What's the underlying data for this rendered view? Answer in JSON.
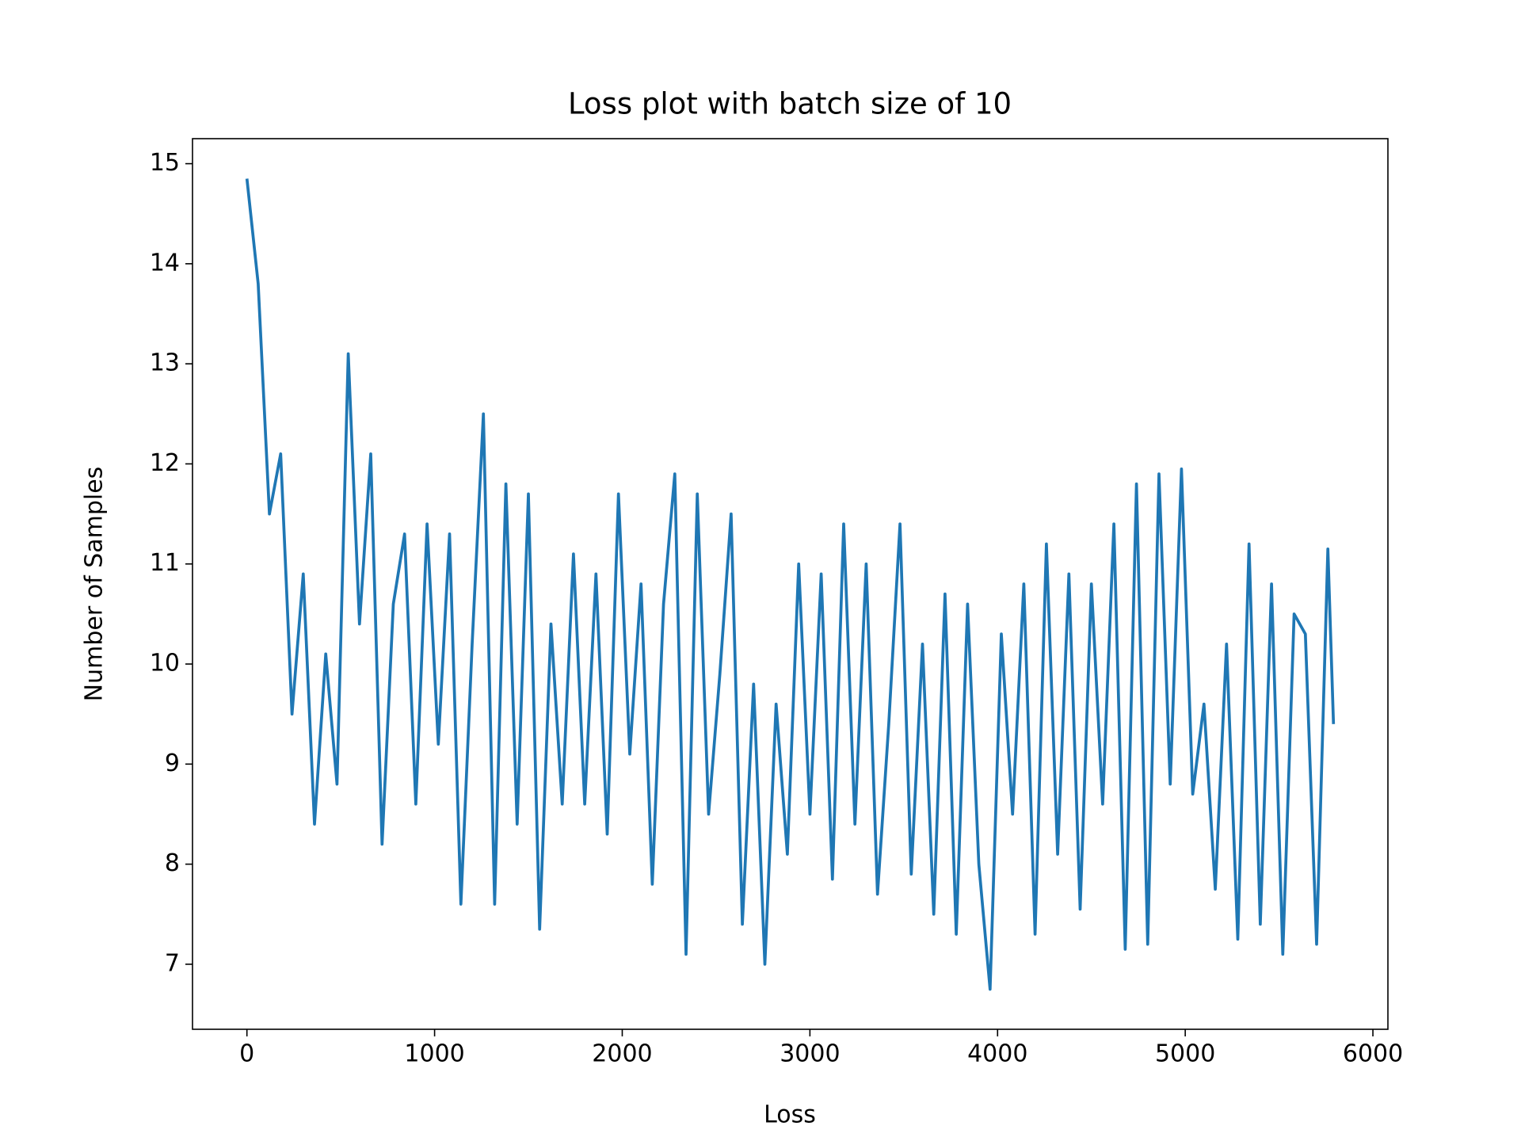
{
  "chart_data": {
    "type": "line",
    "title": "Loss plot with batch size of 10",
    "x_label": "Loss",
    "y_label": "Number of Samples",
    "x": [
      0,
      60,
      120,
      180,
      240,
      300,
      360,
      420,
      480,
      540,
      600,
      660,
      720,
      780,
      840,
      900,
      960,
      1020,
      1080,
      1140,
      1200,
      1260,
      1320,
      1380,
      1440,
      1500,
      1560,
      1620,
      1680,
      1740,
      1800,
      1860,
      1920,
      1980,
      2040,
      2100,
      2160,
      2220,
      2280,
      2340,
      2400,
      2460,
      2520,
      2580,
      2640,
      2700,
      2760,
      2820,
      2880,
      2940,
      3000,
      3060,
      3120,
      3180,
      3240,
      3300,
      3360,
      3420,
      3480,
      3540,
      3600,
      3660,
      3720,
      3780,
      3840,
      3900,
      3960,
      4020,
      4080,
      4140,
      4200,
      4260,
      4320,
      4380,
      4440,
      4500,
      4560,
      4620,
      4680,
      4740,
      4800,
      4860,
      4920,
      4980,
      5040,
      5100,
      5160,
      5220,
      5280,
      5340,
      5400,
      5460,
      5520,
      5580,
      5640,
      5700,
      5760,
      5790
    ],
    "series": [
      {
        "color": "#1f77b4",
        "values": [
          14.85,
          13.8,
          11.5,
          12.1,
          9.5,
          10.9,
          8.4,
          10.1,
          8.8,
          13.1,
          10.4,
          12.1,
          8.2,
          10.6,
          11.3,
          8.6,
          11.4,
          9.2,
          11.3,
          7.6,
          10.2,
          12.5,
          7.6,
          11.8,
          8.4,
          11.7,
          7.35,
          10.4,
          8.6,
          11.1,
          8.6,
          10.9,
          8.3,
          11.7,
          9.1,
          10.8,
          7.8,
          10.6,
          11.9,
          7.1,
          11.7,
          8.5,
          9.9,
          11.5,
          7.4,
          9.8,
          7.0,
          9.6,
          8.1,
          11.0,
          8.5,
          10.9,
          7.85,
          11.4,
          8.4,
          11.0,
          7.7,
          9.4,
          11.4,
          7.9,
          10.2,
          7.5,
          10.7,
          7.3,
          10.6,
          8.0,
          6.75,
          10.3,
          8.5,
          10.8,
          7.3,
          11.2,
          8.1,
          10.9,
          7.55,
          10.8,
          8.6,
          11.4,
          7.15,
          11.8,
          7.2,
          11.9,
          8.8,
          11.95,
          8.7,
          9.6,
          7.75,
          10.2,
          7.25,
          11.2,
          7.4,
          10.8,
          7.1,
          10.5,
          10.3,
          7.2,
          11.15,
          9.4
        ]
      }
    ],
    "xlim": [
      -290,
      6080
    ],
    "ylim": [
      6.35,
      15.25
    ],
    "xticks": [
      0,
      1000,
      2000,
      3000,
      4000,
      5000,
      6000
    ],
    "yticks": [
      7,
      8,
      9,
      10,
      11,
      12,
      13,
      14,
      15
    ]
  }
}
